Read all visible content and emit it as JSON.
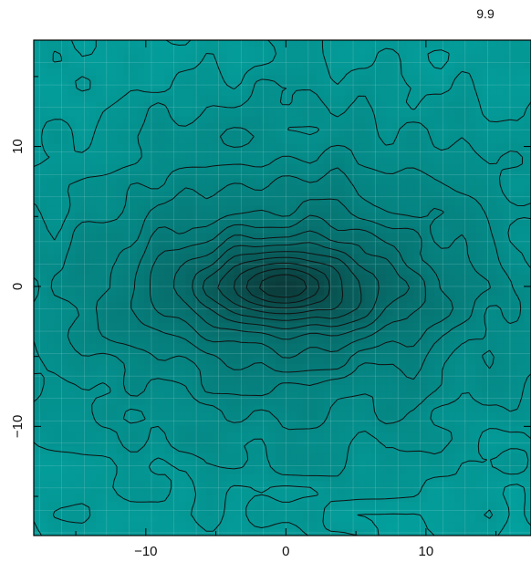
{
  "chart_data": {
    "type": "heatmap",
    "title": "",
    "corner_label": "9.9",
    "xlabel": "",
    "ylabel": "",
    "xlim": [
      -18.0,
      17.5
    ],
    "ylim": [
      -17.8,
      17.6
    ],
    "x_ticks": [
      -10,
      0,
      10
    ],
    "y_ticks": [
      -10,
      0,
      10
    ],
    "x_tick_labels": [
      "−10",
      "0",
      "10"
    ],
    "y_tick_labels": [
      "−10",
      "0",
      "10"
    ],
    "grid": true,
    "legend": "none",
    "colormap": {
      "low": "#0b3b3a",
      "high": "#03a3a0"
    },
    "field_description": "Density map with a dense elongated core at the origin; contour lines trace nested ovals around the core and irregular outer contours.",
    "contour_count": 14
  },
  "colors": {
    "contour": "#111111",
    "grid": "#b9e0df",
    "frame": "#000000"
  }
}
